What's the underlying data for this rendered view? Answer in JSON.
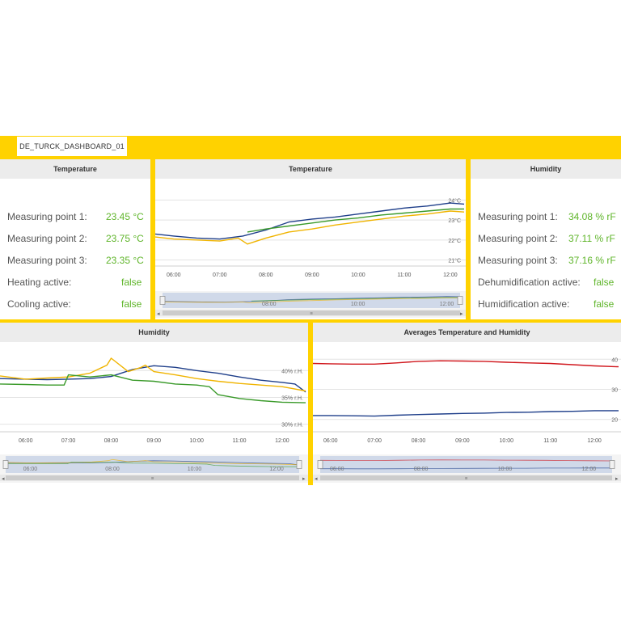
{
  "tab": {
    "title": "DE_TURCK_DASHBOARD_01"
  },
  "colors": {
    "accent": "#ffd200",
    "value_green": "#5fb52a",
    "series_blue": "#1f3f8a",
    "series_yellow": "#f0b400",
    "series_green": "#3a9a2a",
    "series_red": "#d0161c"
  },
  "temp_values": {
    "title": "Temperature",
    "rows": [
      {
        "label": "Measuring point 1:",
        "value": "23.45 °C"
      },
      {
        "label": "Measuring point 2:",
        "value": "23.75 °C"
      },
      {
        "label": "Measuring point 3:",
        "value": "23.35 °C"
      },
      {
        "label": "Heating active:",
        "value": "false"
      },
      {
        "label": "Cooling active:",
        "value": "false"
      }
    ]
  },
  "hum_values": {
    "title": "Humidity",
    "rows": [
      {
        "label": "Measuring point 1:",
        "value": "34.08 % rF"
      },
      {
        "label": "Measuring point 2:",
        "value": "37.11 % rF"
      },
      {
        "label": "Measuring point 3:",
        "value": "37.16 % rF"
      },
      {
        "label": "Dehumidification active:",
        "value": "false"
      },
      {
        "label": "Humidification active:",
        "value": "false"
      }
    ]
  },
  "chart_data": [
    {
      "type": "line",
      "title": "Temperature",
      "xlim": [
        5.6,
        12.3
      ],
      "ylim": [
        20.9,
        24.3
      ],
      "x_ticks": [
        "06:00",
        "07:00",
        "08:00",
        "09:00",
        "10:00",
        "11:00",
        "12:00"
      ],
      "y_ticks": [
        "24°C",
        "23°C",
        "22°C",
        "21°C"
      ],
      "y_tick_values": [
        24,
        23,
        22,
        21
      ],
      "navigator_labels": [
        "08:00",
        "10:00",
        "12:00"
      ],
      "series": [
        {
          "color": "#1f3f8a",
          "x": [
            5.6,
            6.0,
            6.5,
            7.0,
            7.5,
            8.0,
            8.5,
            9.0,
            9.5,
            10.0,
            10.5,
            11.0,
            11.5,
            12.0,
            12.3
          ],
          "y": [
            22.3,
            22.2,
            22.1,
            22.05,
            22.2,
            22.5,
            22.9,
            23.05,
            23.15,
            23.3,
            23.45,
            23.6,
            23.7,
            23.85,
            23.8
          ]
        },
        {
          "color": "#f0b400",
          "x": [
            5.6,
            6.0,
            6.5,
            7.0,
            7.4,
            7.6,
            8.0,
            8.5,
            9.0,
            9.5,
            10.0,
            10.5,
            11.0,
            11.5,
            12.0,
            12.3
          ],
          "y": [
            22.15,
            22.05,
            22.0,
            21.95,
            22.1,
            21.8,
            22.1,
            22.4,
            22.55,
            22.75,
            22.9,
            23.05,
            23.2,
            23.3,
            23.45,
            23.4
          ]
        },
        {
          "color": "#3a9a2a",
          "x": [
            7.6,
            8.0,
            8.5,
            9.0,
            9.5,
            10.0,
            10.5,
            11.0,
            11.5,
            12.0,
            12.3
          ],
          "y": [
            22.4,
            22.55,
            22.7,
            22.85,
            23.0,
            23.1,
            23.25,
            23.35,
            23.45,
            23.55,
            23.55
          ]
        }
      ]
    },
    {
      "type": "line",
      "title": "Humidity",
      "xlim": [
        5.4,
        12.55
      ],
      "ylim": [
        29.5,
        43.5
      ],
      "x_ticks": [
        "06:00",
        "07:00",
        "08:00",
        "09:00",
        "10:00",
        "11:00",
        "12:00"
      ],
      "y_ticks": [
        "40% r.H.",
        "35% r.H.",
        "30% r.H."
      ],
      "y_tick_values": [
        40,
        35,
        30
      ],
      "navigator_labels": [
        "06:00",
        "08:00",
        "10:00",
        "12:00"
      ],
      "series": [
        {
          "color": "#1f3f8a",
          "x": [
            5.4,
            6.0,
            6.5,
            7.0,
            7.5,
            8.0,
            8.5,
            9.0,
            9.5,
            10.0,
            10.5,
            11.0,
            11.5,
            12.0,
            12.3,
            12.55
          ],
          "y": [
            38.5,
            38.4,
            38.3,
            38.4,
            38.5,
            38.9,
            40.2,
            40.9,
            40.6,
            40.0,
            39.5,
            38.8,
            38.2,
            37.8,
            37.5,
            36.0
          ]
        },
        {
          "color": "#f0b400",
          "x": [
            5.4,
            6.0,
            6.5,
            7.0,
            7.5,
            7.9,
            8.0,
            8.4,
            8.7,
            8.8,
            9.0,
            9.5,
            10.0,
            10.5,
            11.0,
            11.5,
            12.0,
            12.55
          ],
          "y": [
            39.0,
            38.4,
            38.6,
            38.8,
            39.5,
            41.0,
            42.3,
            39.8,
            40.6,
            41.0,
            39.8,
            39.2,
            38.5,
            38.0,
            37.6,
            37.3,
            37.0,
            36.2
          ]
        },
        {
          "color": "#3a9a2a",
          "x": [
            5.4,
            6.0,
            6.5,
            6.9,
            7.0,
            7.5,
            8.0,
            8.5,
            9.0,
            9.5,
            10.0,
            10.3,
            10.5,
            11.0,
            11.5,
            12.0,
            12.55
          ],
          "y": [
            37.5,
            37.4,
            37.3,
            37.3,
            39.2,
            38.8,
            39.2,
            38.2,
            38.0,
            37.5,
            37.3,
            37.0,
            35.5,
            34.8,
            34.4,
            34.1,
            34.0
          ]
        }
      ]
    },
    {
      "type": "line",
      "title": "Averages Temperature and Humidity",
      "xlim": [
        5.6,
        12.55
      ],
      "ylim": [
        17.5,
        42.5
      ],
      "x_ticks": [
        "06:00",
        "07:00",
        "08:00",
        "09:00",
        "10:00",
        "11:00",
        "12:00"
      ],
      "y_ticks": [
        "40",
        "30",
        "20"
      ],
      "y_tick_values": [
        40,
        30,
        20
      ],
      "navigator_labels": [
        "06:00",
        "08:00",
        "10:00",
        "12:00"
      ],
      "series": [
        {
          "color": "#d0161c",
          "x": [
            5.6,
            6.0,
            6.5,
            7.0,
            7.5,
            8.0,
            8.5,
            9.0,
            9.5,
            10.0,
            10.5,
            11.0,
            11.5,
            12.0,
            12.55
          ],
          "y": [
            38.6,
            38.5,
            38.4,
            38.4,
            38.8,
            39.3,
            39.5,
            39.4,
            39.3,
            39.0,
            38.8,
            38.6,
            38.2,
            37.8,
            37.5
          ]
        },
        {
          "color": "#1f3f8a",
          "x": [
            5.6,
            6.0,
            6.5,
            7.0,
            7.5,
            8.0,
            8.5,
            9.0,
            9.5,
            10.0,
            10.5,
            11.0,
            11.5,
            12.0,
            12.55
          ],
          "y": [
            21.3,
            21.3,
            21.2,
            21.1,
            21.4,
            21.6,
            21.8,
            22.0,
            22.1,
            22.3,
            22.4,
            22.6,
            22.7,
            22.9,
            22.9
          ]
        }
      ]
    }
  ]
}
